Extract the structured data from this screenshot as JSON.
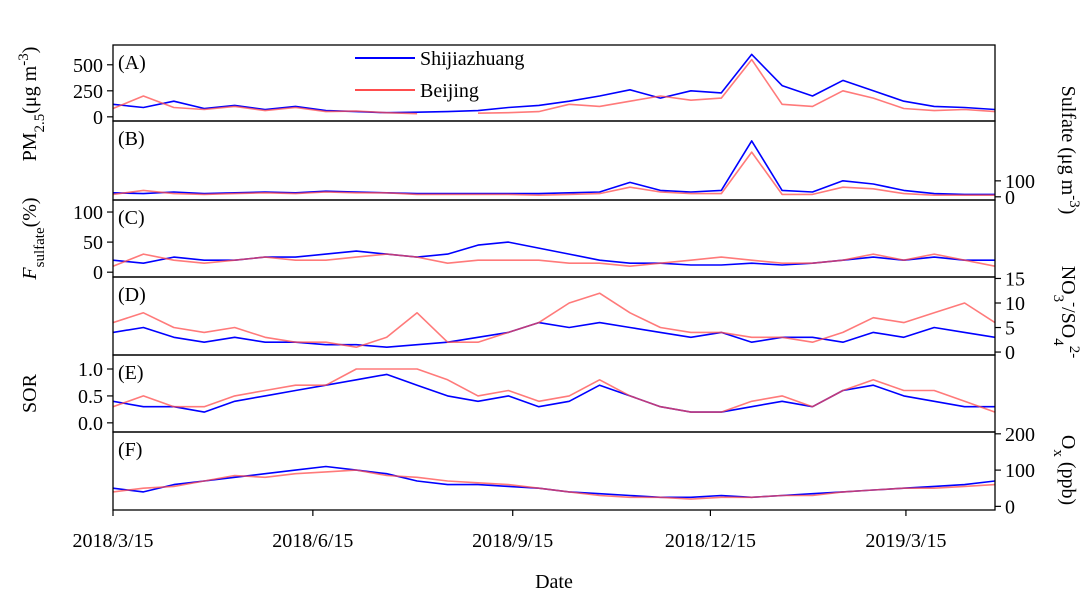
{
  "chart_data": {
    "type": "line",
    "xlabel": "Date",
    "x": [
      "2018/3/15",
      "2018/3/29",
      "2018/4/12",
      "2018/4/26",
      "2018/5/10",
      "2018/5/24",
      "2018/6/7",
      "2018/6/21",
      "2018/7/5",
      "2018/7/19",
      "2018/8/2",
      "2018/8/16",
      "2018/8/30",
      "2018/9/13",
      "2018/9/27",
      "2018/10/11",
      "2018/10/25",
      "2018/11/8",
      "2018/11/22",
      "2018/12/6",
      "2018/12/20",
      "2019/1/3",
      "2019/1/17",
      "2019/1/31",
      "2019/2/14",
      "2019/2/28",
      "2019/3/14",
      "2019/3/28",
      "2019/4/11",
      "2019/4/25"
    ],
    "xlim": [
      "2018/3/15",
      "2019/4/25"
    ],
    "xticks": [
      "2018/3/15",
      "2018/6/15",
      "2018/9/15",
      "2018/12/15",
      "2019/3/15"
    ],
    "panels": [
      {
        "label": "(A)",
        "axis_side": "left",
        "ylabel": [
          {
            "text": "PM"
          },
          {
            "text": "2.5",
            "shift": "sub"
          },
          {
            "text": "(μg m"
          },
          {
            "text": "-3",
            "shift": "sup"
          },
          {
            "text": ")"
          }
        ],
        "ylim": [
          -40,
          690
        ],
        "yticks": [
          0,
          250,
          500
        ],
        "series": [
          {
            "name": "Shijiazhuang",
            "color": "#0000ff",
            "values": [
              120,
              90,
              150,
              80,
              110,
              70,
              100,
              60,
              50,
              40,
              45,
              50,
              60,
              90,
              110,
              150,
              200,
              260,
              180,
              250,
              230,
              600,
              300,
              200,
              350,
              250,
              150,
              100,
              90,
              70
            ]
          },
          {
            "name": "Beijing",
            "color": "#ff4d4d",
            "values": [
              80,
              200,
              90,
              70,
              100,
              60,
              90,
              50,
              55,
              40,
              30,
              null,
              35,
              40,
              50,
              120,
              100,
              150,
              200,
              160,
              180,
              550,
              120,
              100,
              250,
              180,
              80,
              60,
              70,
              50
            ]
          }
        ]
      },
      {
        "label": "(B)",
        "axis_side": "right",
        "ylabel": [
          {
            "text": "Sulfate (μg m"
          },
          {
            "text": "-3",
            "shift": "sup"
          },
          {
            "text": ")"
          }
        ],
        "ylim": [
          -20,
          475
        ],
        "yticks": [
          0,
          100
        ],
        "series": [
          {
            "color": "#0000ff",
            "values": [
              25,
              20,
              30,
              20,
              25,
              30,
              25,
              35,
              30,
              25,
              20,
              20,
              20,
              20,
              20,
              25,
              30,
              90,
              40,
              30,
              40,
              350,
              40,
              30,
              100,
              80,
              40,
              20,
              15,
              15
            ]
          },
          {
            "color": "#ff4d4d",
            "values": [
              15,
              40,
              20,
              15,
              20,
              25,
              20,
              30,
              25,
              25,
              15,
              15,
              15,
              15,
              10,
              15,
              20,
              60,
              30,
              20,
              20,
              280,
              15,
              15,
              60,
              50,
              20,
              10,
              10,
              10
            ]
          }
        ]
      },
      {
        "label": "(C)",
        "axis_side": "left",
        "ylabel": [
          {
            "text": "F",
            "italic": true
          },
          {
            "text": "sulfate",
            "shift": "sub"
          },
          {
            "text": "(%)"
          }
        ],
        "ylim": [
          -8,
          120
        ],
        "yticks": [
          0,
          50,
          100
        ],
        "series": [
          {
            "color": "#0000ff",
            "values": [
              20,
              15,
              25,
              20,
              20,
              25,
              25,
              30,
              35,
              30,
              25,
              30,
              45,
              50,
              40,
              30,
              20,
              15,
              15,
              12,
              12,
              15,
              12,
              15,
              20,
              25,
              20,
              25,
              20,
              20
            ]
          },
          {
            "color": "#ff4d4d",
            "values": [
              10,
              30,
              20,
              15,
              20,
              25,
              20,
              20,
              25,
              30,
              25,
              15,
              20,
              20,
              20,
              15,
              15,
              10,
              15,
              20,
              25,
              20,
              15,
              15,
              20,
              30,
              20,
              30,
              20,
              10
            ]
          }
        ]
      },
      {
        "label": "(D)",
        "axis_side": "right",
        "ylabel": [
          {
            "text": "NO"
          },
          {
            "text": "3",
            "shift": "sub"
          },
          {
            "text": "-",
            "shift": "sup"
          },
          {
            "text": "/SO"
          },
          {
            "text": "4",
            "shift": "sub"
          },
          {
            "text": "2-",
            "shift": "sup"
          }
        ],
        "ylim": [
          -0.6,
          15.3
        ],
        "yticks": [
          0,
          5,
          10,
          15
        ],
        "series": [
          {
            "color": "#0000ff",
            "values": [
              4,
              5,
              3,
              2,
              3,
              2,
              2,
              1.5,
              1.5,
              1,
              1.5,
              2,
              3,
              4,
              6,
              5,
              6,
              5,
              4,
              3,
              4,
              2,
              3,
              3,
              2,
              4,
              3,
              5,
              4,
              3
            ]
          },
          {
            "color": "#ff4d4d",
            "values": [
              6,
              8,
              5,
              4,
              5,
              3,
              2,
              2,
              1,
              3,
              8,
              2,
              2,
              4,
              6,
              10,
              12,
              8,
              5,
              4,
              4,
              3,
              3,
              2,
              4,
              7,
              6,
              8,
              10,
              6
            ]
          }
        ]
      },
      {
        "label": "(E)",
        "axis_side": "left",
        "ylabel": [
          {
            "text": "SOR"
          }
        ],
        "ylim": [
          -0.17,
          1.26
        ],
        "yticks": [
          {
            "value": 0,
            "label": "0.0"
          },
          0.5,
          {
            "value": 1,
            "label": "1.0"
          }
        ],
        "series": [
          {
            "color": "#0000ff",
            "values": [
              0.4,
              0.3,
              0.3,
              0.2,
              0.4,
              0.5,
              0.6,
              0.7,
              0.8,
              0.9,
              0.7,
              0.5,
              0.4,
              0.5,
              0.3,
              0.4,
              0.7,
              0.5,
              0.3,
              0.2,
              0.2,
              0.3,
              0.4,
              0.3,
              0.6,
              0.7,
              0.5,
              0.4,
              0.3,
              0.3
            ]
          },
          {
            "color": "#ff4d4d",
            "values": [
              0.3,
              0.5,
              0.3,
              0.3,
              0.5,
              0.6,
              0.7,
              0.7,
              1,
              1,
              1,
              0.8,
              0.5,
              0.6,
              0.4,
              0.5,
              0.8,
              0.5,
              0.3,
              0.2,
              0.2,
              0.4,
              0.5,
              0.3,
              0.6,
              0.8,
              0.6,
              0.6,
              0.4,
              0.2
            ]
          }
        ]
      },
      {
        "label": "(F)",
        "axis_side": "right",
        "ylabel": [
          {
            "text": "O"
          },
          {
            "text": "x",
            "shift": "sub"
          },
          {
            "text": " (ppb)"
          }
        ],
        "ylim": [
          -10,
          205
        ],
        "yticks": [
          0,
          100,
          200
        ],
        "series": [
          {
            "color": "#0000ff",
            "values": [
              50,
              40,
              60,
              70,
              80,
              90,
              100,
              110,
              100,
              90,
              70,
              60,
              60,
              55,
              50,
              40,
              35,
              30,
              25,
              25,
              30,
              25,
              30,
              35,
              40,
              45,
              50,
              55,
              60,
              70
            ]
          },
          {
            "color": "#ff4d4d",
            "values": [
              40,
              50,
              55,
              70,
              85,
              80,
              90,
              95,
              100,
              85,
              80,
              70,
              65,
              60,
              50,
              40,
              30,
              25,
              25,
              20,
              25,
              25,
              30,
              30,
              40,
              45,
              50,
              50,
              55,
              60
            ]
          }
        ]
      }
    ]
  }
}
